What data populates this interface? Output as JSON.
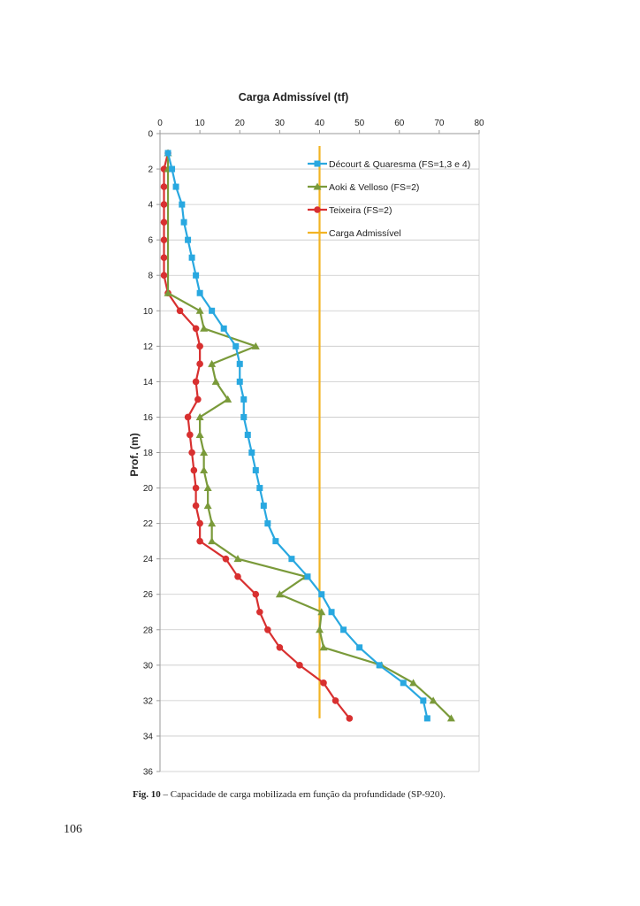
{
  "chart_data": {
    "type": "line",
    "title": "Carga Admissível (tf)",
    "xlabel": "",
    "ylabel": "Prof. (m)",
    "xlim": [
      0,
      80
    ],
    "ylim": [
      0,
      36
    ],
    "y_inverted": true,
    "x_ticks": [
      0,
      10,
      20,
      30,
      40,
      50,
      60,
      70,
      80
    ],
    "y_ticks": [
      0,
      2,
      4,
      6,
      8,
      10,
      12,
      14,
      16,
      18,
      20,
      22,
      24,
      26,
      28,
      30,
      32,
      34,
      36
    ],
    "grid": "horizontal",
    "legend_position": "top-right",
    "series": [
      {
        "name": "Décourt & Quaresma (FS=1,3 e 4)",
        "color": "#29a8e0",
        "marker": "square",
        "points": [
          [
            2,
            1.1
          ],
          [
            3,
            2
          ],
          [
            4,
            3
          ],
          [
            5.5,
            4
          ],
          [
            6,
            5
          ],
          [
            7,
            6
          ],
          [
            8,
            7
          ],
          [
            9,
            8
          ],
          [
            10,
            9
          ],
          [
            13,
            10
          ],
          [
            16,
            11
          ],
          [
            19,
            12
          ],
          [
            20,
            13
          ],
          [
            20,
            14
          ],
          [
            21,
            15
          ],
          [
            21,
            16
          ],
          [
            22,
            17
          ],
          [
            23,
            18
          ],
          [
            24,
            19
          ],
          [
            25,
            20
          ],
          [
            26,
            21
          ],
          [
            27,
            22
          ],
          [
            29,
            23
          ],
          [
            33,
            24
          ],
          [
            37,
            25
          ],
          [
            40.5,
            26
          ],
          [
            43,
            27
          ],
          [
            46,
            28
          ],
          [
            50,
            29
          ],
          [
            55,
            30
          ],
          [
            61,
            31
          ],
          [
            66,
            32
          ],
          [
            67,
            33
          ]
        ]
      },
      {
        "name": "Aoki & Velloso (FS=2)",
        "color": "#7a9a3a",
        "marker": "triangle",
        "points": [
          [
            2,
            1.1
          ],
          [
            2,
            2
          ],
          [
            2,
            9
          ],
          [
            10,
            10
          ],
          [
            11,
            11
          ],
          [
            24,
            12
          ],
          [
            13,
            13
          ],
          [
            14,
            14
          ],
          [
            17,
            15
          ],
          [
            10,
            16
          ],
          [
            10,
            17
          ],
          [
            11,
            18
          ],
          [
            11,
            19
          ],
          [
            12,
            20
          ],
          [
            12,
            21
          ],
          [
            13,
            22
          ],
          [
            13,
            23
          ],
          [
            19.5,
            24
          ],
          [
            36.5,
            25
          ],
          [
            30,
            26
          ],
          [
            40.5,
            27
          ],
          [
            40,
            28
          ],
          [
            41,
            29
          ],
          [
            55.5,
            30
          ],
          [
            63.5,
            31
          ],
          [
            68.5,
            32
          ],
          [
            73,
            33
          ]
        ]
      },
      {
        "name": "Teixeira (FS=2)",
        "color": "#d83030",
        "marker": "circle",
        "points": [
          [
            2,
            1.1
          ],
          [
            1,
            2
          ],
          [
            1,
            3
          ],
          [
            1,
            4
          ],
          [
            1,
            5
          ],
          [
            1,
            6
          ],
          [
            1,
            7
          ],
          [
            1,
            8
          ],
          [
            2,
            9
          ],
          [
            5,
            10
          ],
          [
            9,
            11
          ],
          [
            10,
            12
          ],
          [
            10,
            13
          ],
          [
            9,
            14
          ],
          [
            9.5,
            15
          ],
          [
            7,
            16
          ],
          [
            7.5,
            17
          ],
          [
            8,
            18
          ],
          [
            8.5,
            19
          ],
          [
            9,
            20
          ],
          [
            9,
            21
          ],
          [
            10,
            22
          ],
          [
            10,
            23
          ],
          [
            16.5,
            24
          ],
          [
            19.5,
            25
          ],
          [
            24,
            26
          ],
          [
            25,
            27
          ],
          [
            27,
            28
          ],
          [
            30,
            29
          ],
          [
            35,
            30
          ],
          [
            41,
            31
          ],
          [
            44,
            32
          ],
          [
            47.5,
            33
          ]
        ]
      },
      {
        "name": "Carga Admissível",
        "color": "#f2b424",
        "marker": "none",
        "points": [
          [
            40,
            0.7
          ],
          [
            40,
            33
          ]
        ]
      }
    ]
  },
  "caption": {
    "label": "Fig. 10",
    "text": " – Capacidade de carga mobilizada em função da profundidade (SP-920)."
  },
  "page_number": "106"
}
